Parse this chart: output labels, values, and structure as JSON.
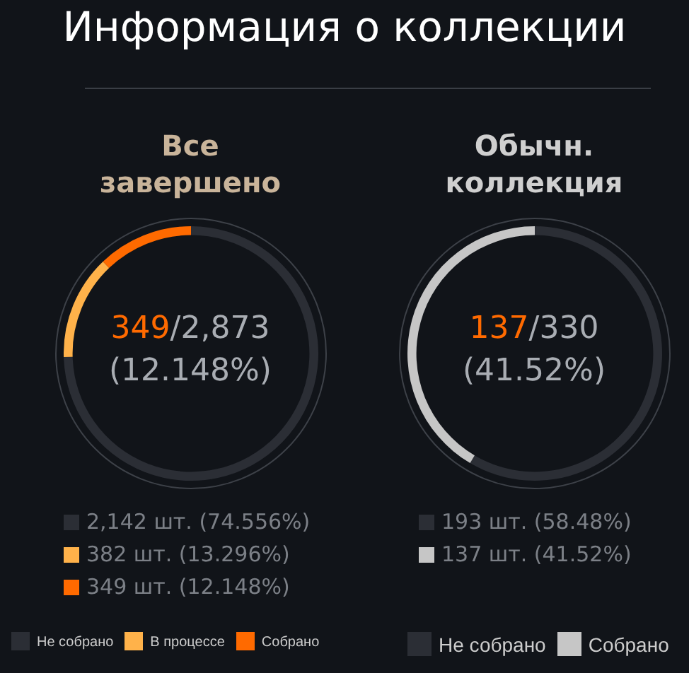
{
  "chart_data": [
    {
      "type": "donut",
      "title": "Информация о коллекции",
      "subtitle": "Все завершено",
      "categories": [
        "Не собрано",
        "В процессе",
        "Собрано"
      ],
      "values": [
        74.556,
        13.296,
        12.148
      ],
      "colors": [
        "#2b2e35",
        "#ffb24a",
        "#ff6a00"
      ],
      "annotations": [
        "349",
        "/2,873",
        "(12.148%)",
        "2,142 шт. (74.556%)",
        "382 шт. (13.296%)",
        "349 шт. (12.148%)"
      ],
      "legend": "bottom"
    },
    {
      "type": "donut",
      "subtitle": "Обычн. коллекция",
      "categories": [
        "Не собрано",
        "Собрано"
      ],
      "values": [
        58.48,
        41.52
      ],
      "colors": [
        "#2b2e35",
        "#c6c6c6"
      ],
      "annotations": [
        "137",
        "/330",
        "(41.52%)",
        "193 шт. (58.48%)",
        "137 шт. (41.52%)"
      ],
      "legend": "bottom"
    }
  ]
}
